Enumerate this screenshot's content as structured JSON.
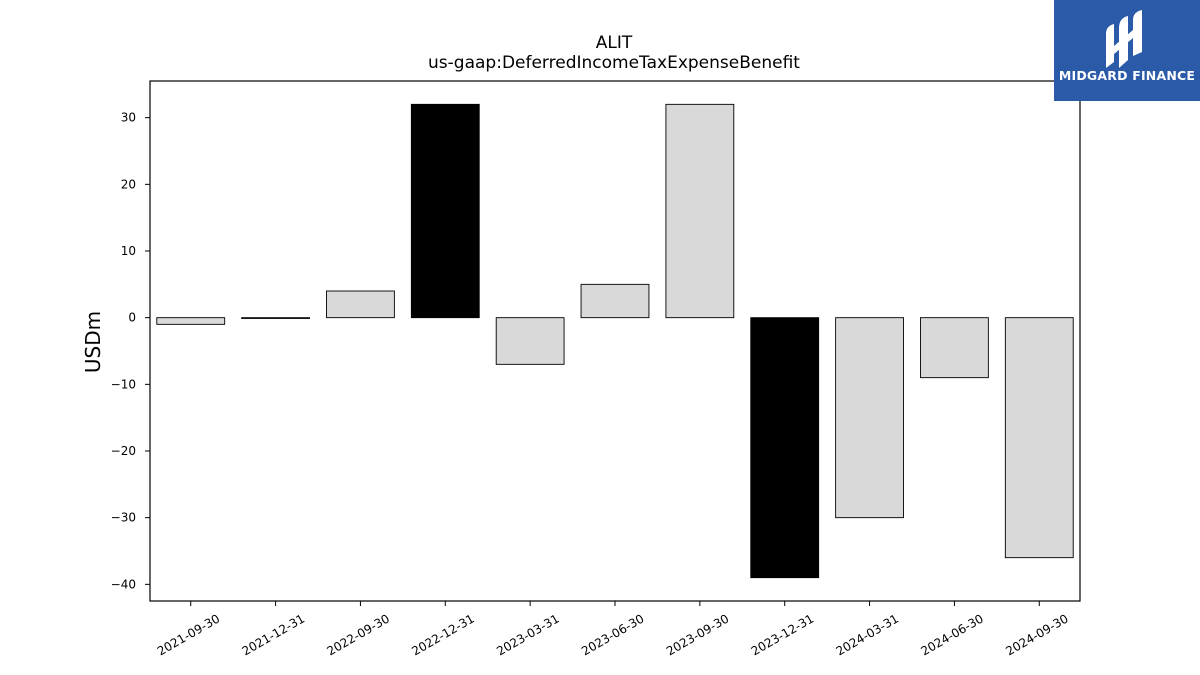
{
  "brand": {
    "name": "MIDGARD FINANCE",
    "logo_icon": "midgard-m-icon",
    "bg_color": "#2a5aa8"
  },
  "chart_data": {
    "type": "bar",
    "title": "ALIT",
    "subtitle": "us-gaap:DeferredIncomeTaxExpenseBenefit",
    "xlabel": "",
    "ylabel": "USDm",
    "ylim": [
      -42.5,
      35.5
    ],
    "yticks": [
      30,
      20,
      10,
      0,
      -10,
      -20,
      -30,
      -40
    ],
    "ytick_labels": [
      "30",
      "20",
      "10",
      "0",
      "−10",
      "−20",
      "−30",
      "−40"
    ],
    "categories": [
      "2021-09-30",
      "2021-12-31",
      "2022-09-30",
      "2022-12-31",
      "2023-03-31",
      "2023-06-30",
      "2023-09-30",
      "2023-12-31",
      "2024-03-31",
      "2024-06-30",
      "2024-09-30"
    ],
    "values": [
      -1,
      0,
      4,
      32,
      -7,
      5,
      32,
      -39,
      -30,
      -9,
      -36
    ],
    "highlight": [
      false,
      false,
      false,
      true,
      false,
      false,
      false,
      true,
      false,
      false,
      false
    ],
    "colors": {
      "normal": "#d9d9d9",
      "highlight": "#000000",
      "edge": "#000000"
    },
    "grid": false,
    "legend": "none"
  }
}
